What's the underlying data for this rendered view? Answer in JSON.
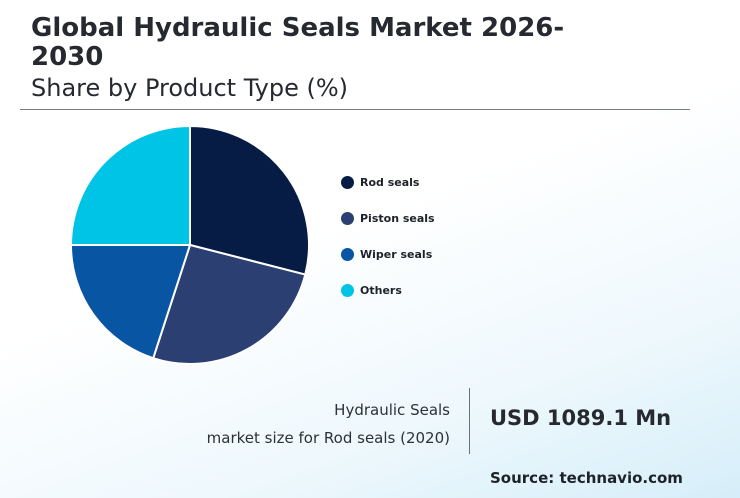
{
  "header": {
    "title": "Global Hydraulic Seals Market 2026-2030",
    "subtitle": "Share by Product Type (%)"
  },
  "chart_data": {
    "type": "pie",
    "title": "Global Hydraulic Seals Market 2026-2030",
    "subtitle": "Share by Product Type (%)",
    "categories": [
      "Rod seals",
      "Piston seals",
      "Wiper seals",
      "Others"
    ],
    "values": [
      29,
      26,
      20,
      25
    ],
    "colors": [
      "#071c45",
      "#2c3f73",
      "#0755a3",
      "#00c4e6"
    ],
    "start_angle_deg": 0,
    "direction": "clockwise",
    "legend_position": "right"
  },
  "metric": {
    "label_line1": "Hydraulic Seals",
    "label_line2": "market size for Rod seals (2020)",
    "value": "USD 1089.1 Mn"
  },
  "footer": {
    "source": "Source: technavio.com"
  }
}
